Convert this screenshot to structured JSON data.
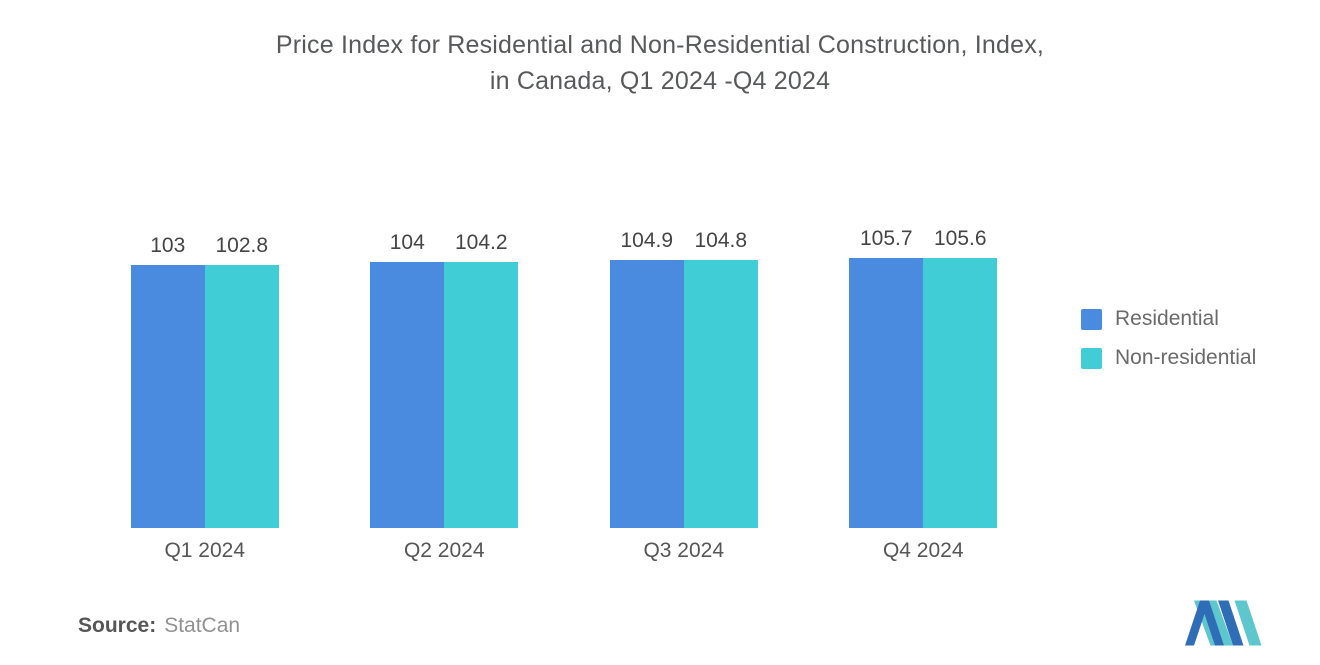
{
  "title": "Price Index for Residential and Non-Residential Construction, Index,\nin Canada, Q1 2024 -Q4 2024",
  "source": {
    "label": "Source:",
    "value": "StatCan"
  },
  "legend": [
    {
      "label": "Residential",
      "color": "#4a8be0"
    },
    {
      "label": "Non-residential",
      "color": "#40cdd6"
    }
  ],
  "brand_logo": {
    "icon": "mordor-intelligence-monogram-icon",
    "blue": "#2f6eb6",
    "teal": "#5ec7cd"
  },
  "chart_data": {
    "type": "bar",
    "title": "Price Index for Residential and Non-Residential Construction, Index, in Canada, Q1 2024 -Q4 2024",
    "categories": [
      "Q1 2024",
      "Q2 2024",
      "Q3 2024",
      "Q4 2024"
    ],
    "series": [
      {
        "name": "Residential",
        "color": "#4a8be0",
        "values": [
          103,
          104,
          104.9,
          105.7
        ]
      },
      {
        "name": "Non-residential",
        "color": "#40cdd6",
        "values": [
          102.8,
          104.2,
          104.8,
          105.6
        ]
      }
    ],
    "xlabel": "",
    "ylabel": "",
    "ylim": [
      0,
      105.7
    ],
    "grid": false,
    "value_labels_shown": true,
    "legend_position": "right"
  }
}
